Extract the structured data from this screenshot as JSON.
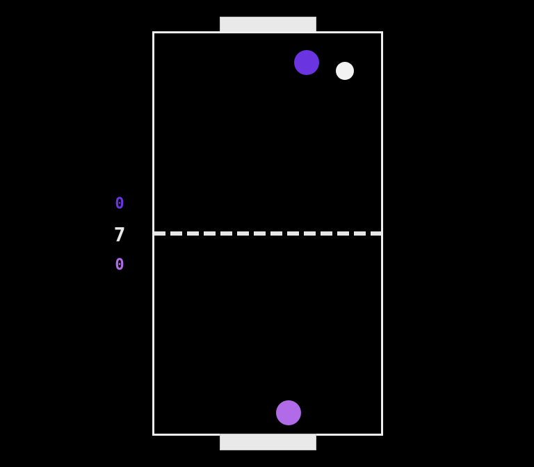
{
  "scores": {
    "top_player": "0",
    "timer": "7",
    "bottom_player": "0"
  },
  "colors": {
    "background": "#000000",
    "rink_border": "#efefef",
    "goal": "#e9e9e9",
    "center_line": "#e6e6e6",
    "top_player": "#6a35e0",
    "bottom_player": "#b16ae8",
    "timer": "#e8e8e8",
    "puck": "#f2f2f2"
  },
  "icons": {
    "top_mallet": "circle-mallet-icon",
    "bottom_mallet": "circle-mallet-icon",
    "puck": "puck-icon"
  }
}
